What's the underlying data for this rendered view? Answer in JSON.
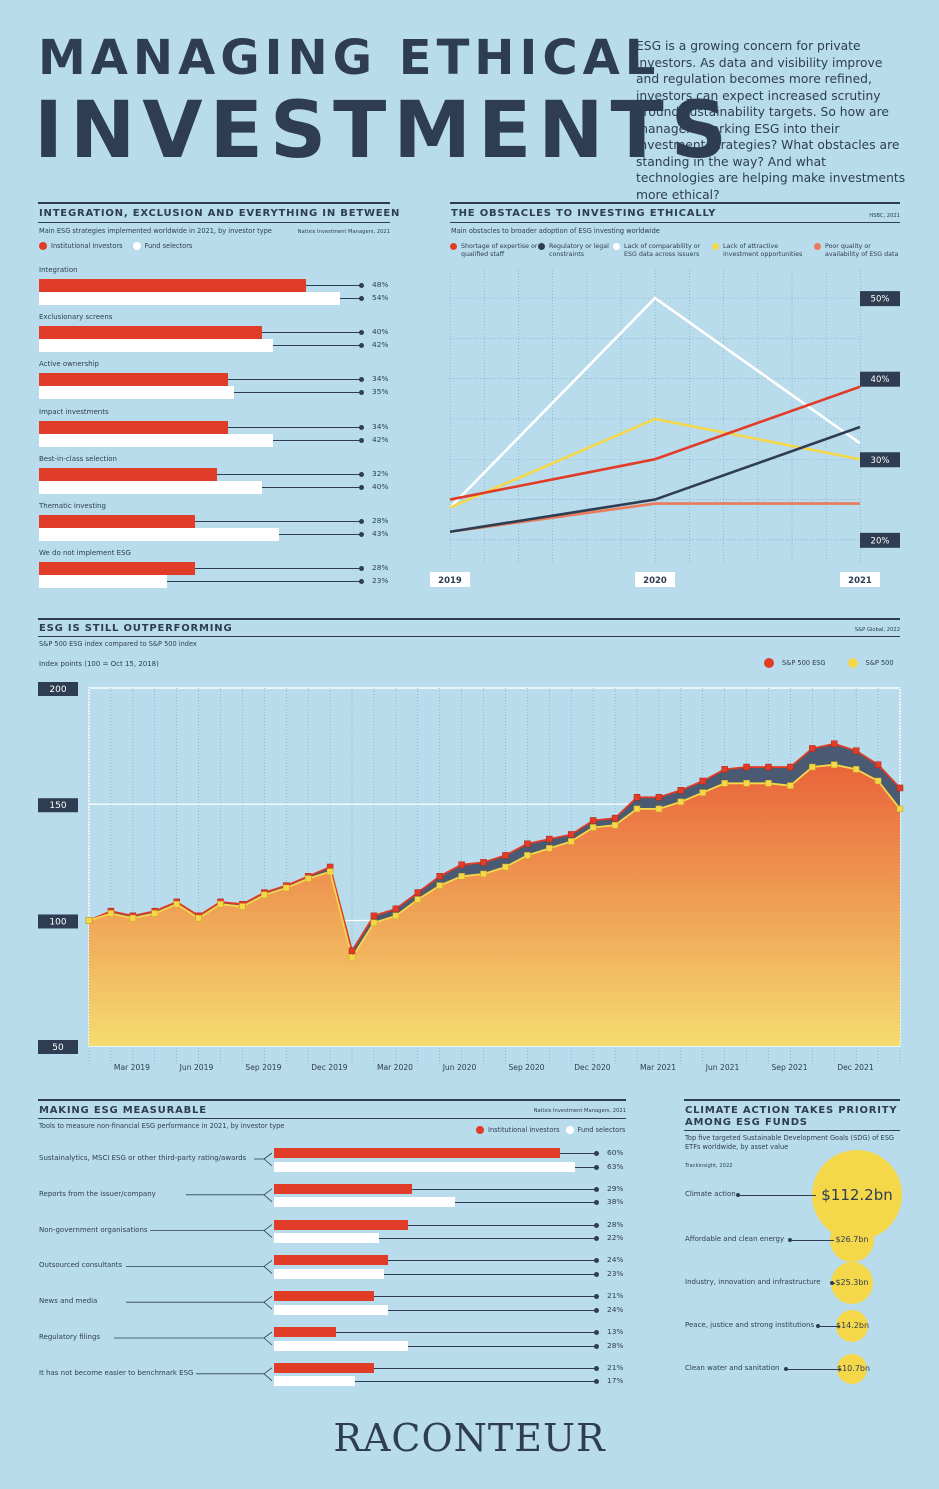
{
  "header": {
    "title_line1": "MANAGING ETHICAL",
    "title_line2": "INVESTMENTS",
    "intro": "ESG is a growing concern for private investors. As data and visibility improve and regulation becomes more refined, investors can expect increased scrutiny around sustainability targets. So how are managers working ESG into their investment strategies? What obstacles are standing in the way? And what technologies are helping make investments more ethical?"
  },
  "integration": {
    "title": "INTEGRATION, EXCLUSION AND EVERYTHING IN BETWEEN",
    "subtitle": "Main ESG strategies implemented worldwide in 2021, by investor type",
    "source": "Natixis Investment Managers, 2021",
    "legend": [
      "Institutional investors",
      "Fund selectors"
    ]
  },
  "obstacles": {
    "title": "THE OBSTACLES TO INVESTING ETHICALLY",
    "subtitle": "Main obstacles to broader adoption of ESG investing worldwide",
    "source": "HSBC, 2021",
    "legend": [
      "Shortage of expertise or qualified staff",
      "Regulatory or legal constraints",
      "Lack of comparability or ESG data across issuers",
      "Lack of attractive investment opportunities",
      "Poor quality or availability of ESG data"
    ]
  },
  "outperform": {
    "title": "ESG IS STILL OUTPERFORMING",
    "subtitle": "S&P 500 ESG index compared to S&P 500 index",
    "source": "S&P Global, 2022",
    "axis_note": "Index points (100 = Oct 15, 2018)",
    "legend": [
      "S&P 500 ESG",
      "S&P 500"
    ]
  },
  "measurable": {
    "title": "MAKING ESG MEASURABLE",
    "subtitle": "Tools to measure non-financial ESG performance in 2021, by investor type",
    "source": "Natixis Investment Managers, 2021",
    "legend": [
      "Institutional investors",
      "Fund selectors"
    ]
  },
  "climate": {
    "title": "CLIMATE ACTION TAKES PRIORITY AMONG ESG FUNDS",
    "subtitle": "Top five targeted Sustainable Development Goals (SDG) of ESG ETFs worldwide, by asset value",
    "source": "Trackinsight, 2022"
  },
  "footer": {
    "brand": "RACONTEUR"
  },
  "colors": {
    "bg": "#b8dcec",
    "navy": "#2e3d52",
    "red": "#e03c28",
    "white": "#ffffff",
    "yellow": "#f5d74a",
    "coral": "#ea7a58"
  },
  "chart_data": [
    {
      "type": "bar",
      "id": "integration",
      "categories": [
        "Integration",
        "Exclusionary screens",
        "Active ownership",
        "Impact investments",
        "Best-in-class selection",
        "Thematic investing",
        "We do not implement ESG"
      ],
      "series": [
        {
          "name": "Institutional investors",
          "values": [
            48,
            40,
            34,
            34,
            32,
            28,
            28
          ]
        },
        {
          "name": "Fund selectors",
          "values": [
            54,
            42,
            35,
            42,
            40,
            43,
            23
          ]
        }
      ],
      "value_labels": [
        [
          "48%",
          "40%",
          "34%",
          "34%",
          "32%",
          "28%",
          "28%"
        ],
        [
          "54%",
          "42%",
          "35%",
          "42%",
          "40%",
          "43%",
          "23%"
        ]
      ]
    },
    {
      "type": "line",
      "id": "obstacles",
      "x": [
        "2019",
        "2020",
        "2021"
      ],
      "y_ticks": [
        "50%",
        "40%",
        "30%",
        "20%"
      ],
      "ylim": [
        17,
        52
      ],
      "series": [
        {
          "name": "Shortage of expertise or qualified staff",
          "values": [
            25,
            30,
            39
          ]
        },
        {
          "name": "Regulatory or legal constraints",
          "values": [
            21,
            25,
            34
          ]
        },
        {
          "name": "Lack of comparability or ESG data across issuers",
          "values": [
            24,
            50,
            32
          ]
        },
        {
          "name": "Lack of attractive investment opportunities",
          "values": [
            24,
            35,
            30
          ]
        },
        {
          "name": "Poor quality or availability of ESG data",
          "values": [
            21,
            24.5,
            24.5
          ]
        }
      ]
    },
    {
      "type": "area",
      "id": "outperform",
      "ylim": [
        46,
        200
      ],
      "y_ticks": [
        "200",
        "150",
        "100",
        "50"
      ],
      "x_ticks": [
        "Mar 2019",
        "Jun 2019",
        "Sep 2019",
        "Dec 2019",
        "Mar 2020",
        "Jun 2020",
        "Sep 2020",
        "Dec 2020",
        "Mar 2021",
        "Jun 2021",
        "Sep 2021",
        "Dec 2021"
      ],
      "series": [
        {
          "name": "S&P 500 ESG",
          "values": [
            100,
            104,
            102,
            104,
            108,
            102,
            108,
            107,
            112,
            115,
            119,
            123,
            87,
            102,
            105,
            112,
            119,
            124,
            125,
            128,
            133,
            135,
            137,
            143,
            144,
            153,
            153,
            156,
            160,
            165,
            166,
            166,
            166,
            174,
            176,
            173,
            167,
            157
          ]
        },
        {
          "name": "S&P 500",
          "values": [
            100,
            103,
            101,
            103,
            107,
            101,
            107,
            106,
            111,
            114,
            118,
            121,
            84,
            99,
            102,
            109,
            115,
            119,
            120,
            123,
            128,
            131,
            134,
            140,
            141,
            148,
            148,
            151,
            155,
            159,
            159,
            159,
            158,
            166,
            167,
            165,
            160,
            148
          ]
        }
      ]
    },
    {
      "type": "bar",
      "id": "measurable",
      "categories": [
        "Sustainalytics, MSCI ESG or other third-party rating/awards",
        "Reports from the issuer/company",
        "Non-government organisations",
        "Outsourced consultants",
        "News and media",
        "Regulatory filings",
        "It has not become easier to benchmark ESG"
      ],
      "series": [
        {
          "name": "Institutional investors",
          "values": [
            60,
            29,
            28,
            24,
            21,
            13,
            21
          ]
        },
        {
          "name": "Fund selectors",
          "values": [
            63,
            38,
            22,
            23,
            24,
            28,
            17
          ]
        }
      ],
      "value_labels": [
        [
          "60%",
          "29%",
          "28%",
          "24%",
          "21%",
          "13%",
          "21%"
        ],
        [
          "63%",
          "38%",
          "22%",
          "23%",
          "24%",
          "28%",
          "17%"
        ]
      ]
    },
    {
      "type": "bubble",
      "id": "climate",
      "categories": [
        "Climate action",
        "Affordable and clean energy",
        "Industry, innovation and infrastructure",
        "Peace, justice and strong institutions",
        "Clean water and sanitation"
      ],
      "values": [
        112.2,
        26.7,
        25.3,
        14.2,
        10.7
      ],
      "value_labels": [
        "$112.2bn",
        "$26.7bn",
        "$25.3bn",
        "$14.2bn",
        "$10.7bn"
      ],
      "unit": "bn"
    }
  ]
}
